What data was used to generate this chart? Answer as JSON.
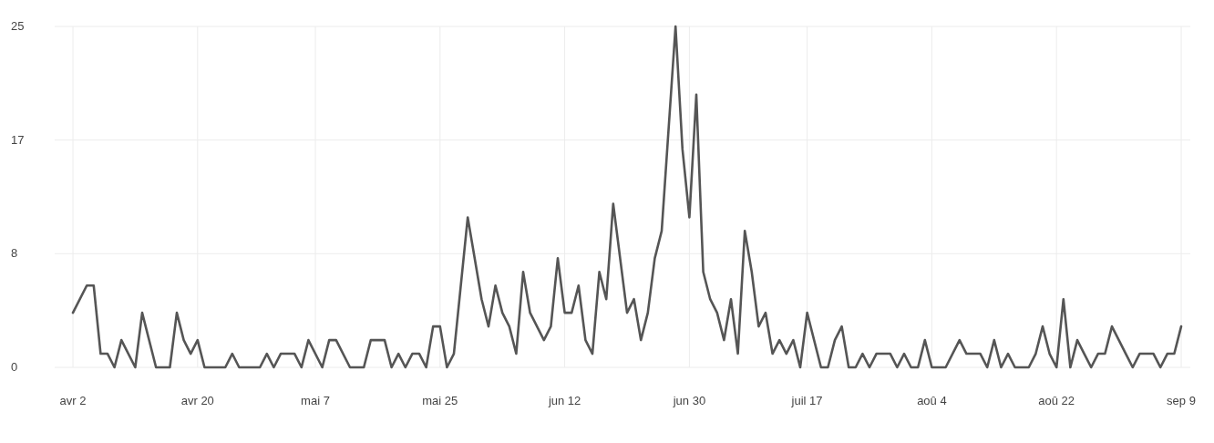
{
  "chart_data": {
    "type": "line",
    "x": [
      "--04-02",
      "--04-04",
      "--04-05",
      "--04-06",
      "--04-07",
      "--04-08",
      "--04-09",
      "--04-11",
      "--04-12",
      "--04-14",
      "--04-16",
      "--04-17",
      "--04-18",
      "--04-19",
      "--04-20",
      "--04-21",
      "--04-24",
      "--04-25",
      "--04-26",
      "--04-29",
      "--04-30",
      "--05-01",
      "--05-02",
      "--05-04",
      "--05-05",
      "--05-06",
      "--05-08",
      "--05-09",
      "--05-10",
      "--05-12",
      "--05-14",
      "--05-15",
      "--05-17",
      "--05-18",
      "--05-19",
      "--05-20",
      "--05-21",
      "--05-22",
      "--05-23",
      "--05-24",
      "--05-25",
      "--05-26",
      "--05-27",
      "--05-29",
      "--05-30",
      "--05-31",
      "--06-01",
      "--06-02",
      "--06-03",
      "--06-04",
      "--06-05",
      "--06-06",
      "--06-07",
      "--06-09",
      "--06-10",
      "--06-11",
      "--06-12",
      "--06-13",
      "--06-14",
      "--06-15",
      "--06-16",
      "--06-17",
      "--06-18",
      "--06-19",
      "--06-21",
      "--06-22",
      "--06-23",
      "--06-24",
      "--06-25",
      "--06-26",
      "--06-28",
      "--06-29",
      "--06-30",
      "--07-01",
      "--07-02",
      "--07-03",
      "--07-04",
      "--07-05",
      "--07-06",
      "--07-07",
      "--07-08",
      "--07-09",
      "--07-10",
      "--07-11",
      "--07-12",
      "--07-13",
      "--07-14",
      "--07-15",
      "--07-16",
      "--07-17",
      "--07-19",
      "--07-20",
      "--07-21",
      "--07-22",
      "--07-23",
      "--07-24",
      "--07-25",
      "--07-26",
      "--07-27",
      "--07-29",
      "--07-30",
      "--07-31",
      "--08-01",
      "--08-02",
      "--08-03",
      "--08-04",
      "--08-06",
      "--08-08",
      "--08-09",
      "--08-11",
      "--08-12",
      "--08-13",
      "--08-14",
      "--08-15",
      "--08-16",
      "--08-18",
      "--08-19",
      "--08-20",
      "--08-21",
      "--08-22",
      "--08-23",
      "--08-24",
      "--08-25",
      "--08-26",
      "--08-27",
      "--08-28",
      "--08-29",
      "--08-30",
      "--08-31",
      "--09-01",
      "--09-02",
      "--09-03",
      "--09-05",
      "--09-06",
      "--09-07",
      "--09-08",
      "--09-09"
    ],
    "series": [
      {
        "color": "#555555",
        "values": [
          4,
          6,
          6,
          1,
          1,
          0,
          2,
          0,
          4,
          0,
          0,
          4,
          2,
          1,
          2,
          0,
          0,
          1,
          0,
          0,
          1,
          0,
          1,
          1,
          0,
          2,
          0,
          2,
          2,
          0,
          0,
          2,
          2,
          0,
          1,
          0,
          1,
          1,
          0,
          3,
          3,
          0,
          1,
          11,
          8,
          5,
          3,
          6,
          4,
          3,
          1,
          7,
          4,
          2,
          3,
          8,
          4,
          4,
          6,
          2,
          1,
          7,
          5,
          12,
          4,
          5,
          2,
          4,
          8,
          10,
          25,
          16,
          11,
          20,
          7,
          5,
          4,
          2,
          5,
          1,
          10,
          7,
          3,
          4,
          1,
          2,
          1,
          2,
          0,
          4,
          0,
          0,
          2,
          3,
          0,
          0,
          1,
          0,
          1,
          1,
          0,
          1,
          0,
          0,
          2,
          0,
          0,
          2,
          1,
          1,
          0,
          2,
          0,
          1,
          0,
          0,
          1,
          3,
          1,
          0,
          5,
          0,
          2,
          1,
          0,
          1,
          1,
          3,
          2,
          1,
          0,
          1,
          1,
          0,
          1,
          1,
          3
        ]
      }
    ],
    "xlim": [
      "--04-02",
      "--09-09"
    ],
    "xticks": [
      {
        "value": "--04-02",
        "label": "avr 2"
      },
      {
        "value": "--04-20",
        "label": "avr 20"
      },
      {
        "value": "--05-07",
        "label": "mai 7"
      },
      {
        "value": "--05-25",
        "label": "mai 25"
      },
      {
        "value": "--06-12",
        "label": "jun 12"
      },
      {
        "value": "--06-30",
        "label": "jun 30"
      },
      {
        "value": "--07-17",
        "label": "juil 17"
      },
      {
        "value": "--08-04",
        "label": "aoû 4"
      },
      {
        "value": "--08-22",
        "label": "aoû 22"
      },
      {
        "value": "--09-09",
        "label": "sep 9"
      }
    ],
    "ylim": [
      0,
      25
    ],
    "yticks": [
      0,
      {
        "value": 8.333,
        "label": "8"
      },
      {
        "value": 16.667,
        "label": "17"
      },
      25
    ],
    "grid": true,
    "marker": "none",
    "line_style": "solid"
  }
}
